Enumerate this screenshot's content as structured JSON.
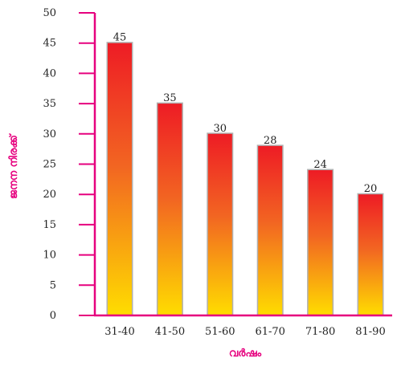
{
  "chart_data": {
    "type": "bar",
    "categories": [
      "31-40",
      "41-50",
      "51-60",
      "61-70",
      "71-80",
      "81-90"
    ],
    "values": [
      45,
      35,
      30,
      28,
      24,
      20
    ],
    "data_labels": [
      "45",
      "35",
      "30",
      "28",
      "24",
      "20"
    ],
    "title": "",
    "xlabel": "വർഷം",
    "ylabel": "ജനന നിരക്ക്",
    "ylim": [
      0,
      50
    ],
    "yticks": [
      "0",
      "5",
      "10",
      "15",
      "20",
      "25",
      "30",
      "35",
      "40",
      "45",
      "50"
    ],
    "grid": false,
    "legend": "none",
    "colors": {
      "axis": "#e6007e",
      "axis_title": "#e6007e",
      "bar_top": "#ee1c25",
      "bar_mid": "#f26522",
      "bar_bottom": "#ffdd00",
      "bar_shadow": "#b0b0b0"
    }
  }
}
